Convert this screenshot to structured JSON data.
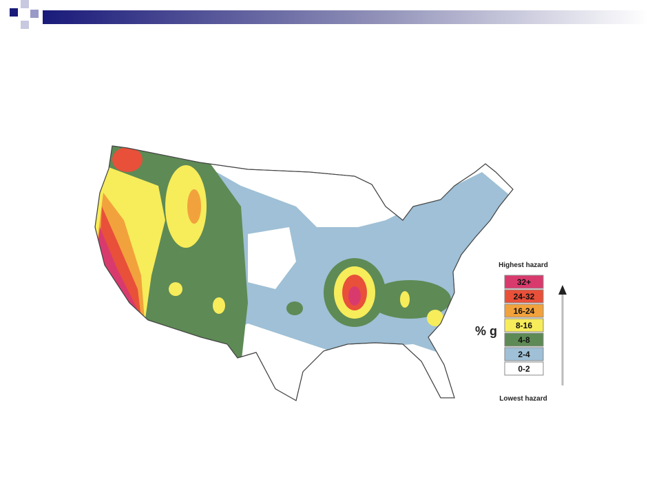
{
  "legend": {
    "top": "Highest hazard",
    "unit": "% g",
    "bottom": "Lowest hazard",
    "items": [
      {
        "label": "32+",
        "color": "#d93a6e"
      },
      {
        "label": "24-32",
        "color": "#e8503a"
      },
      {
        "label": "16-24",
        "color": "#f2a23c"
      },
      {
        "label": "8-16",
        "color": "#f7ec5a"
      },
      {
        "label": "4-8",
        "color": "#5e8a55"
      },
      {
        "label": "2-4",
        "color": "#9fc0d6"
      },
      {
        "label": "0-2",
        "color": "#ffffff"
      }
    ]
  }
}
